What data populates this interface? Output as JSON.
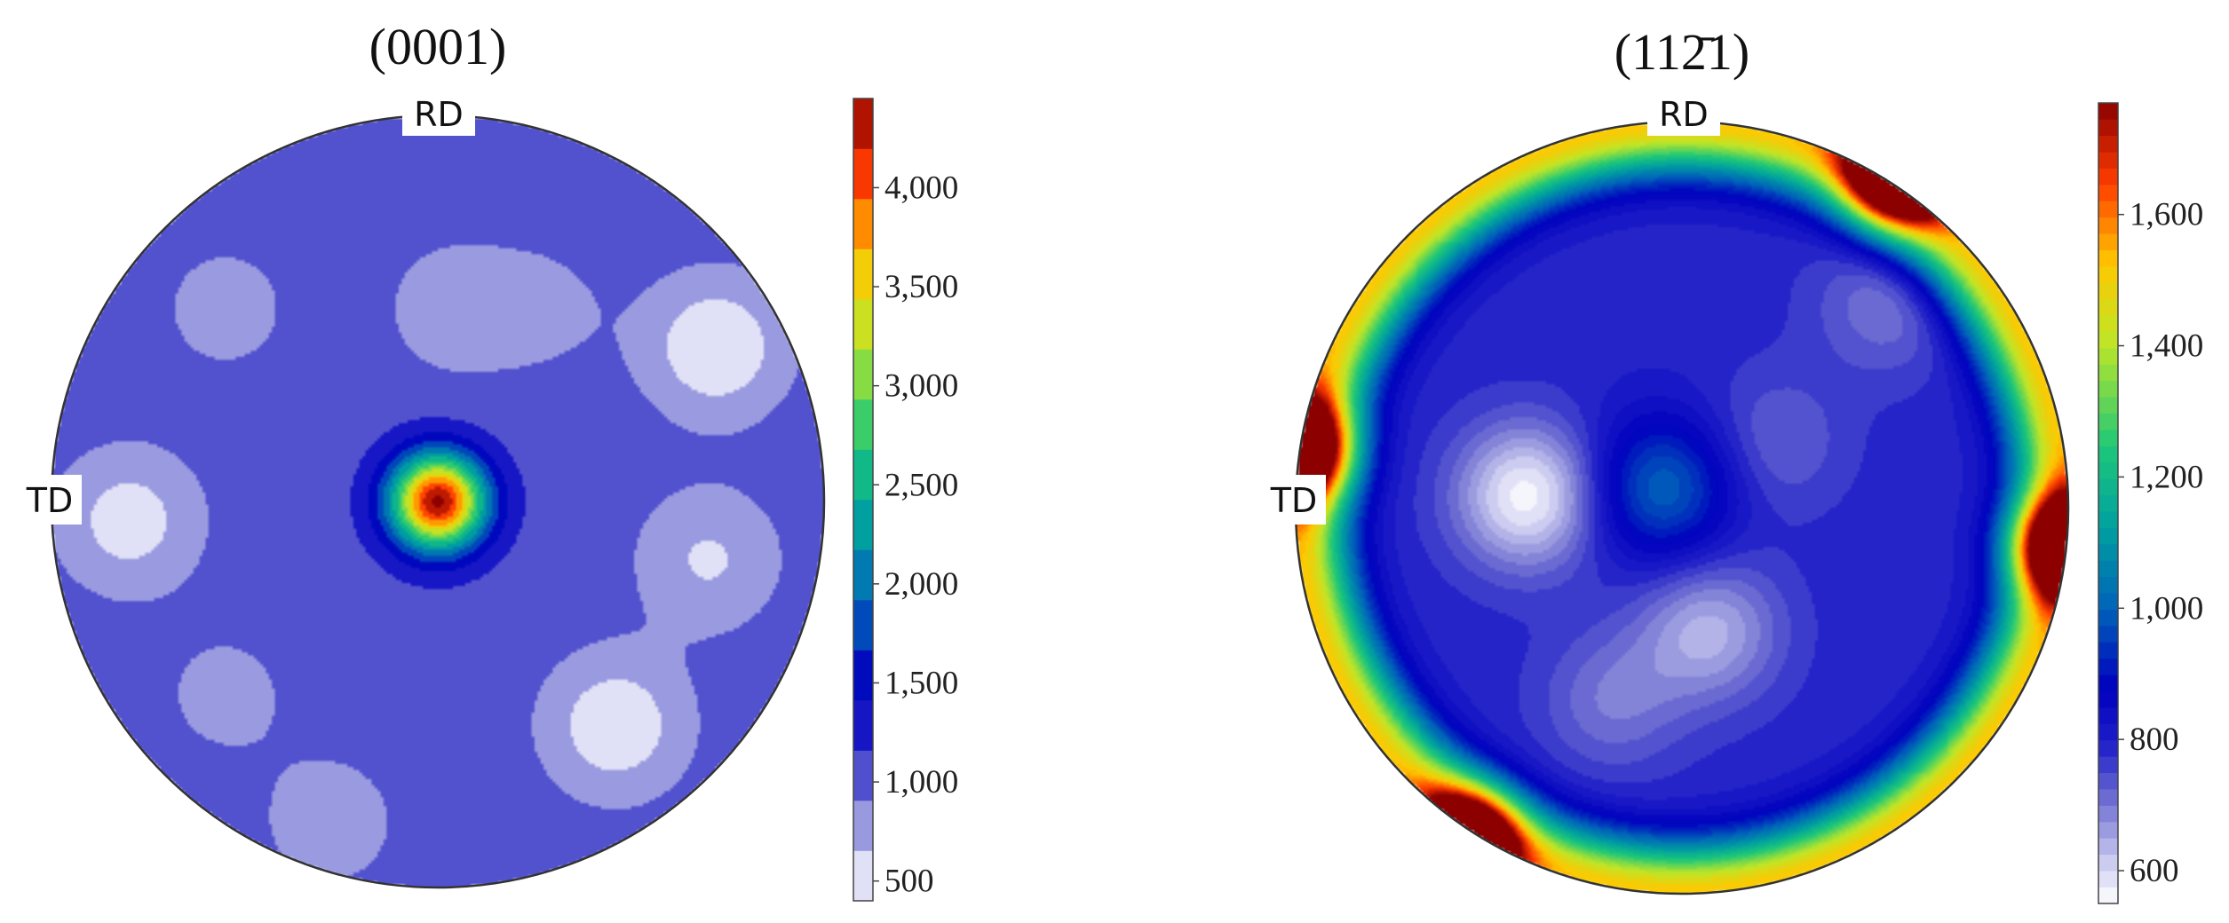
{
  "chart_data": [
    {
      "type": "heatmap",
      "subtype": "pole-figure",
      "title": "(0001)",
      "direction_labels": {
        "top": "RD",
        "left": "TD"
      },
      "colorbar": {
        "range": [
          400,
          4450
        ],
        "ticks": [
          500,
          1000,
          1500,
          2000,
          2500,
          3000,
          3500,
          4000
        ],
        "tick_labels": [
          "500",
          "1,000",
          "1,500",
          "2,000",
          "2,500",
          "3,000",
          "3,500",
          "4,000"
        ],
        "contour_step": 250
      },
      "background_value": 1050,
      "features": [
        {
          "kind": "peak",
          "at": [
            0.0,
            0.0
          ],
          "value": 4450,
          "note": "central maximum"
        },
        {
          "kind": "low",
          "at": [
            0.46,
            -0.58
          ],
          "value": 450
        },
        {
          "kind": "low",
          "at": [
            0.72,
            0.4
          ],
          "value": 420
        },
        {
          "kind": "low",
          "at": [
            -0.8,
            -0.05
          ],
          "value": 520
        },
        {
          "kind": "low",
          "at": [
            0.7,
            -0.15
          ],
          "value": 620
        },
        {
          "kind": "low",
          "at": [
            -0.28,
            -0.83
          ],
          "value": 760
        },
        {
          "kind": "low",
          "at": [
            0.04,
            0.5
          ],
          "value": 760
        },
        {
          "kind": "low",
          "at": [
            -0.55,
            0.5
          ],
          "value": 800
        },
        {
          "kind": "low",
          "at": [
            -0.55,
            -0.5
          ],
          "value": 820
        },
        {
          "kind": "low",
          "at": [
            0.28,
            0.5
          ],
          "value": 850
        }
      ]
    },
    {
      "type": "heatmap",
      "subtype": "pole-figure",
      "title": "(11 2̄1)",
      "title_parts": [
        "(",
        "11",
        "2̄",
        "1",
        ")"
      ],
      "direction_labels": {
        "top": "RD",
        "left": "TD"
      },
      "colorbar": {
        "range": [
          550,
          1770
        ],
        "ticks": [
          600,
          800,
          1000,
          1200,
          1400,
          1600
        ],
        "tick_labels": [
          "600",
          "800",
          "1,000",
          "1,200",
          "1,400",
          "1,600"
        ],
        "contour_step": 25
      },
      "background_value": 790,
      "features": [
        {
          "kind": "rim-ring",
          "value_at_rim": 1520,
          "note": "yellow-green ring at the circle edge"
        },
        {
          "kind": "peak",
          "at": [
            -0.56,
            -0.87
          ],
          "value": 1770
        },
        {
          "kind": "peak",
          "at": [
            0.56,
            0.87
          ],
          "value": 1770
        },
        {
          "kind": "peak",
          "at": [
            0.99,
            -0.1
          ],
          "value": 1740
        },
        {
          "kind": "peak",
          "at": [
            -0.99,
            0.15
          ],
          "value": 1740
        },
        {
          "kind": "low",
          "at": [
            -0.4,
            0.03
          ],
          "value": 560
        },
        {
          "kind": "low",
          "at": [
            0.07,
            -0.32
          ],
          "value": 640
        },
        {
          "kind": "low",
          "at": [
            -0.18,
            -0.5
          ],
          "value": 700
        },
        {
          "kind": "low",
          "at": [
            0.53,
            0.53
          ],
          "value": 700
        },
        {
          "kind": "low",
          "at": [
            0.24,
            0.17
          ],
          "value": 720
        },
        {
          "kind": "mid",
          "at": [
            -0.05,
            0.05
          ],
          "value": 1000
        }
      ]
    }
  ]
}
